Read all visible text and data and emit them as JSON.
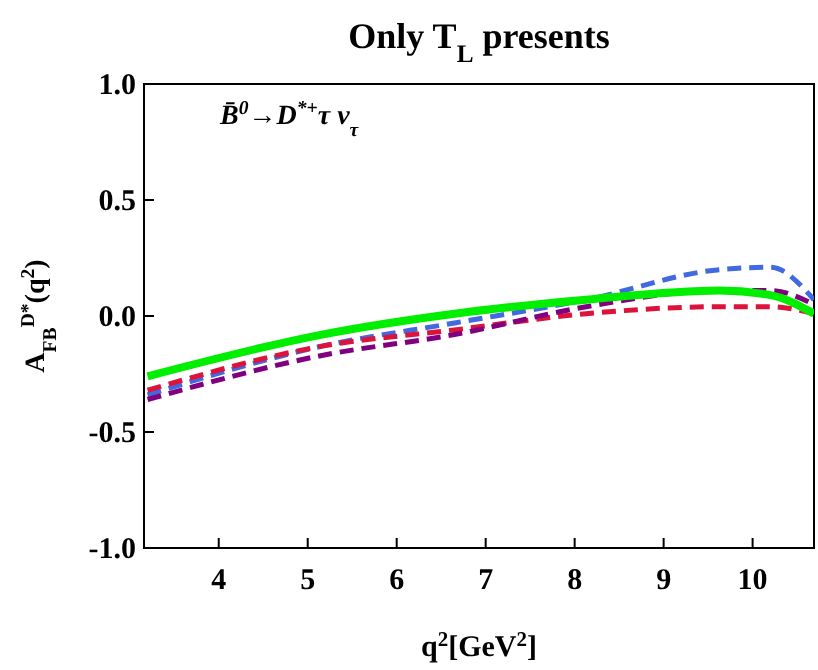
{
  "chart_data": {
    "type": "line",
    "title": "Only T$_{L}$ presents",
    "xlabel": "q$^{2}$[GeV$^{2}$]",
    "ylabel": "A$_{FB}$$^{D*}$(q$^{2}$)",
    "annotations": [
      "B̄$^{0}$→D$^{*+}$τ ν$_{τ}$"
    ],
    "x": [
      3.2,
      5.16,
      6.65,
      8.13,
      9.63,
      10.2,
      10.69
    ],
    "xlim": [
      3.16,
      10.69
    ],
    "xticks": [
      4,
      5,
      6,
      7,
      8,
      9,
      10
    ],
    "ylim": [
      -1,
      1
    ],
    "yticks": [
      {
        "value": -1,
        "label": "-1.0"
      },
      {
        "value": -0.5,
        "label": "-0.5"
      },
      {
        "value": 0,
        "label": "0.0"
      },
      {
        "value": 0.5,
        "label": "0.5"
      },
      {
        "value": 1,
        "label": "1.0"
      }
    ],
    "grid": false,
    "series": [
      {
        "color": "#4169e1",
        "line_style": "dashed",
        "values": [
          -0.34,
          -0.13,
          -0.03,
          0.07,
          0.2,
          0.21,
          0.07
        ]
      },
      {
        "color": "#dc143c",
        "line_style": "dashed",
        "values": [
          -0.32,
          -0.13,
          -0.06,
          0.01,
          0.04,
          0.04,
          0.01
        ]
      },
      {
        "color": "#800080",
        "line_style": "dashed",
        "values": [
          -0.36,
          -0.17,
          -0.08,
          0.04,
          0.11,
          0.11,
          0.05
        ]
      },
      {
        "color": "#00ee00",
        "line_style": "solid",
        "values": [
          -0.26,
          -0.08,
          0.01,
          0.07,
          0.11,
          0.09,
          0.01
        ]
      }
    ]
  }
}
